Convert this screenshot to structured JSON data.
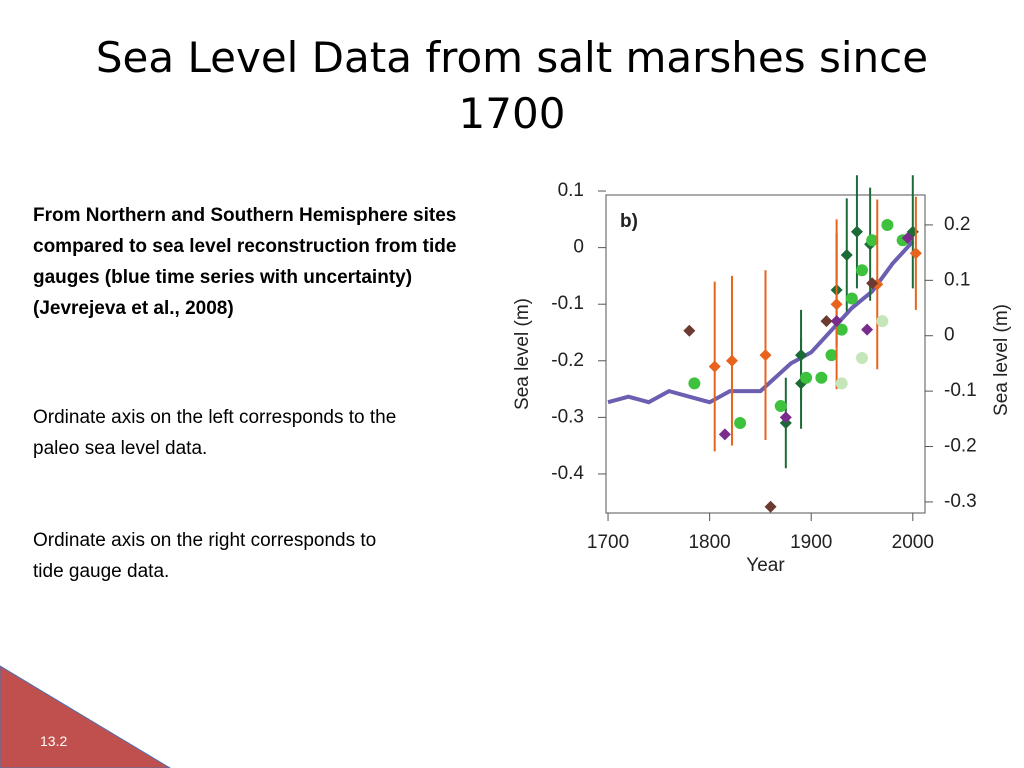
{
  "title": "Sea Level Data from salt marshes since 1700",
  "text": {
    "bold": "From Northern and Southern Hemisphere sites compared to sea level reconstruction from tide gauges (blue time series with uncertainty) (Jevrejeva et al., 2008)",
    "p1": "Ordinate axis on the left corresponds to the paleo sea level data.",
    "p2": "Ordinate axis on the right corresponds to tide gauge data."
  },
  "slide_number": "13.2",
  "chart_data": {
    "type": "scatter",
    "panel_label": "b)",
    "xlabel": "Year",
    "ylabel": "Sea level (m)",
    "y2label": "Sea level (m)",
    "xlim": [
      1698,
      2012
    ],
    "xticks": [
      1700,
      1800,
      1900,
      2000
    ],
    "ylim": [
      -0.469,
      0.093
    ],
    "yticks": [
      -0.4,
      -0.3,
      -0.2,
      -0.1,
      0,
      0.1
    ],
    "y2lim": [
      -0.32,
      0.254
    ],
    "y2ticks": [
      -0.3,
      -0.2,
      -0.1,
      0,
      0.1,
      0.2
    ],
    "series": [
      {
        "color": "#6a5fb0",
        "marker": "line",
        "axis": "y2",
        "x": [
          1700,
          1720,
          1740,
          1760,
          1780,
          1800,
          1820,
          1850,
          1880,
          1900,
          1920,
          1940,
          1960,
          1980,
          2000
        ],
        "values": [
          -0.12,
          -0.11,
          -0.12,
          -0.1,
          -0.11,
          -0.12,
          -0.1,
          -0.1,
          -0.05,
          -0.03,
          0.01,
          0.05,
          0.08,
          0.13,
          0.17
        ]
      },
      {
        "color": "#1c6b36",
        "marker": "diamond",
        "x": [
          1875,
          1890,
          1890,
          1925,
          1935,
          1945,
          1958,
          2000
        ],
        "values": [
          -0.31,
          -0.19,
          -0.24,
          -0.075,
          -0.013,
          0.028,
          0.006,
          0.028
        ],
        "errors": [
          0.08,
          0.08,
          0.08,
          0.1,
          0.1,
          0.1,
          0.1,
          0.1
        ]
      },
      {
        "color": "#3ec23e",
        "marker": "circle",
        "x": [
          1785,
          1830,
          1870,
          1895,
          1910,
          1920,
          1930,
          1940,
          1950,
          1960,
          1975,
          1990
        ],
        "values": [
          -0.24,
          -0.31,
          -0.28,
          -0.23,
          -0.23,
          -0.19,
          -0.145,
          -0.09,
          -0.04,
          0.013,
          0.04,
          0.013
        ]
      },
      {
        "color": "#e8641c",
        "marker": "diamond",
        "x": [
          1805,
          1822,
          1855,
          1925,
          1965,
          2003
        ],
        "values": [
          -0.21,
          -0.2,
          -0.19,
          -0.1,
          -0.065,
          -0.01
        ],
        "errors": [
          0.15,
          0.15,
          0.15,
          0.15,
          0.15,
          0.1
        ]
      },
      {
        "color": "#7a2c8c",
        "marker": "diamond",
        "x": [
          1815,
          1875,
          1925,
          1955,
          1995
        ],
        "values": [
          -0.33,
          -0.3,
          -0.13,
          -0.145,
          0.017
        ]
      },
      {
        "color": "#6b3a30",
        "marker": "diamond",
        "x": [
          1780,
          1860,
          1915,
          1960
        ],
        "values": [
          -0.147,
          -0.458,
          -0.13,
          -0.063
        ]
      },
      {
        "color": "#c4e6b8",
        "marker": "circle",
        "x": [
          1930,
          1950,
          1970
        ],
        "values": [
          -0.24,
          -0.195,
          -0.13
        ]
      }
    ]
  }
}
